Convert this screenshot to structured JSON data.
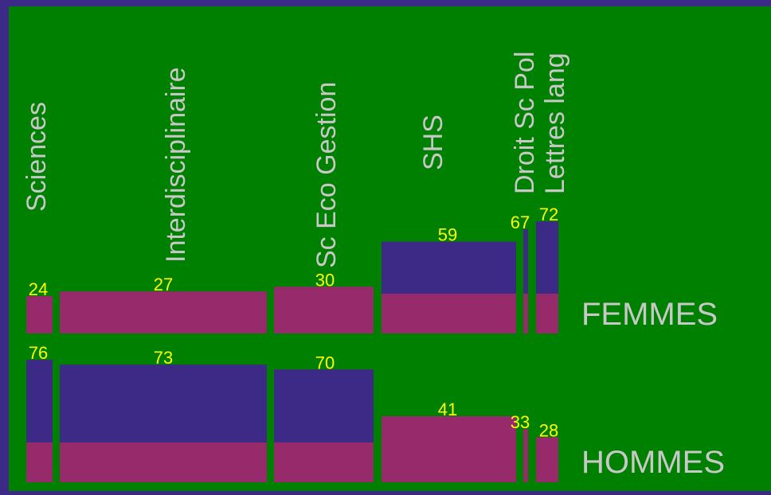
{
  "chart_data": {
    "type": "bar",
    "title": "",
    "categories": [
      "Sciences",
      "Interdisciplinaire",
      "Sc Eco Gestion",
      "SHS",
      "Droit Sc Pol",
      "Lettres lang"
    ],
    "series": [
      {
        "name": "FEMMES",
        "values": [
          24,
          27,
          30,
          59,
          67,
          72
        ]
      },
      {
        "name": "HOMMES",
        "values": [
          76,
          73,
          70,
          41,
          33,
          28
        ]
      }
    ],
    "ylim": [
      0,
      100
    ],
    "grid": false,
    "legend": "right",
    "colors": {
      "outer": "#3d2a86",
      "plot": "#008000",
      "bar": "#962a6b",
      "bar_top": "#3d2a86",
      "value_label": "#ffff00",
      "category_label": "#c8c8c8",
      "series_label": "#c8c8c8"
    }
  }
}
